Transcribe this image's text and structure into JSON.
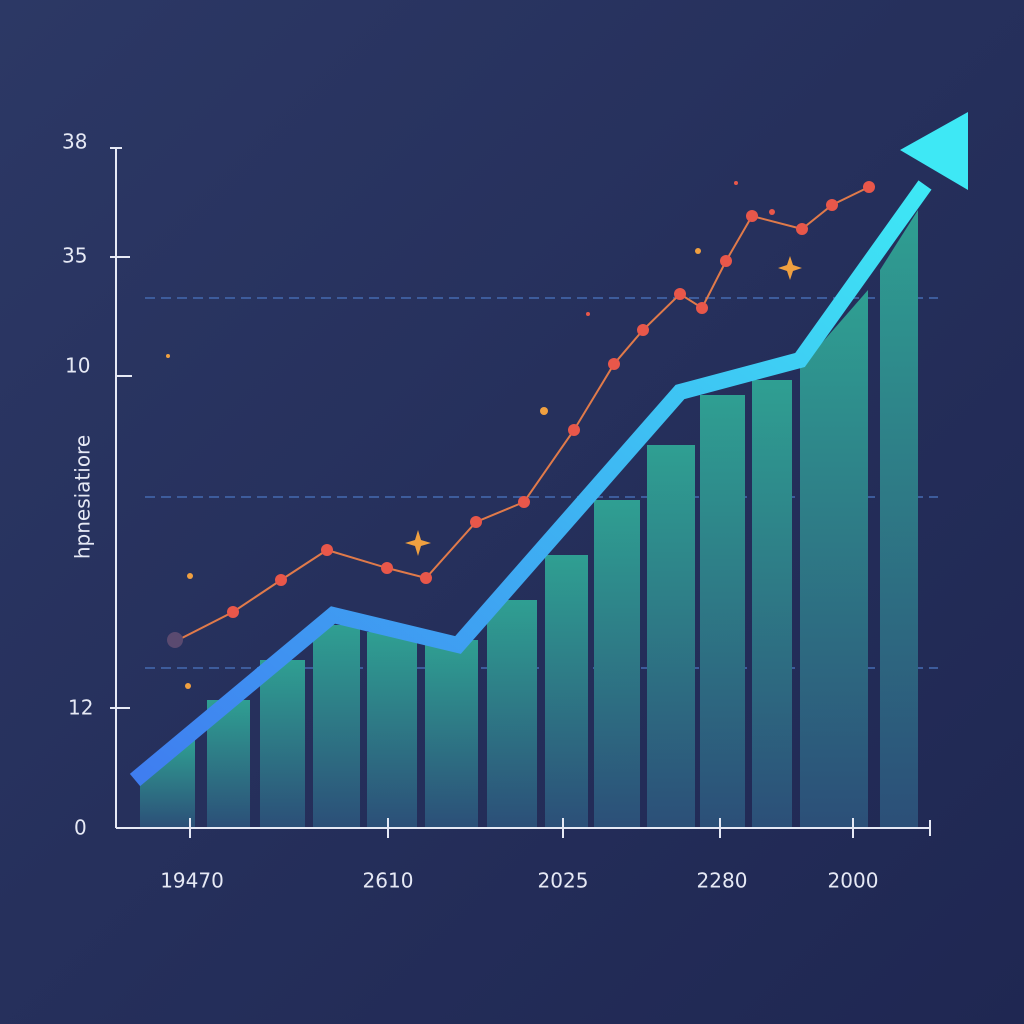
{
  "chart_data": {
    "type": "illustration",
    "y_label": "hpnesiatiore",
    "y_axis_labels": [
      "38",
      "35",
      "10",
      "12",
      "0"
    ],
    "x_axis_labels": [
      "19470",
      "2610",
      "2025",
      "2280",
      "2000"
    ]
  }
}
